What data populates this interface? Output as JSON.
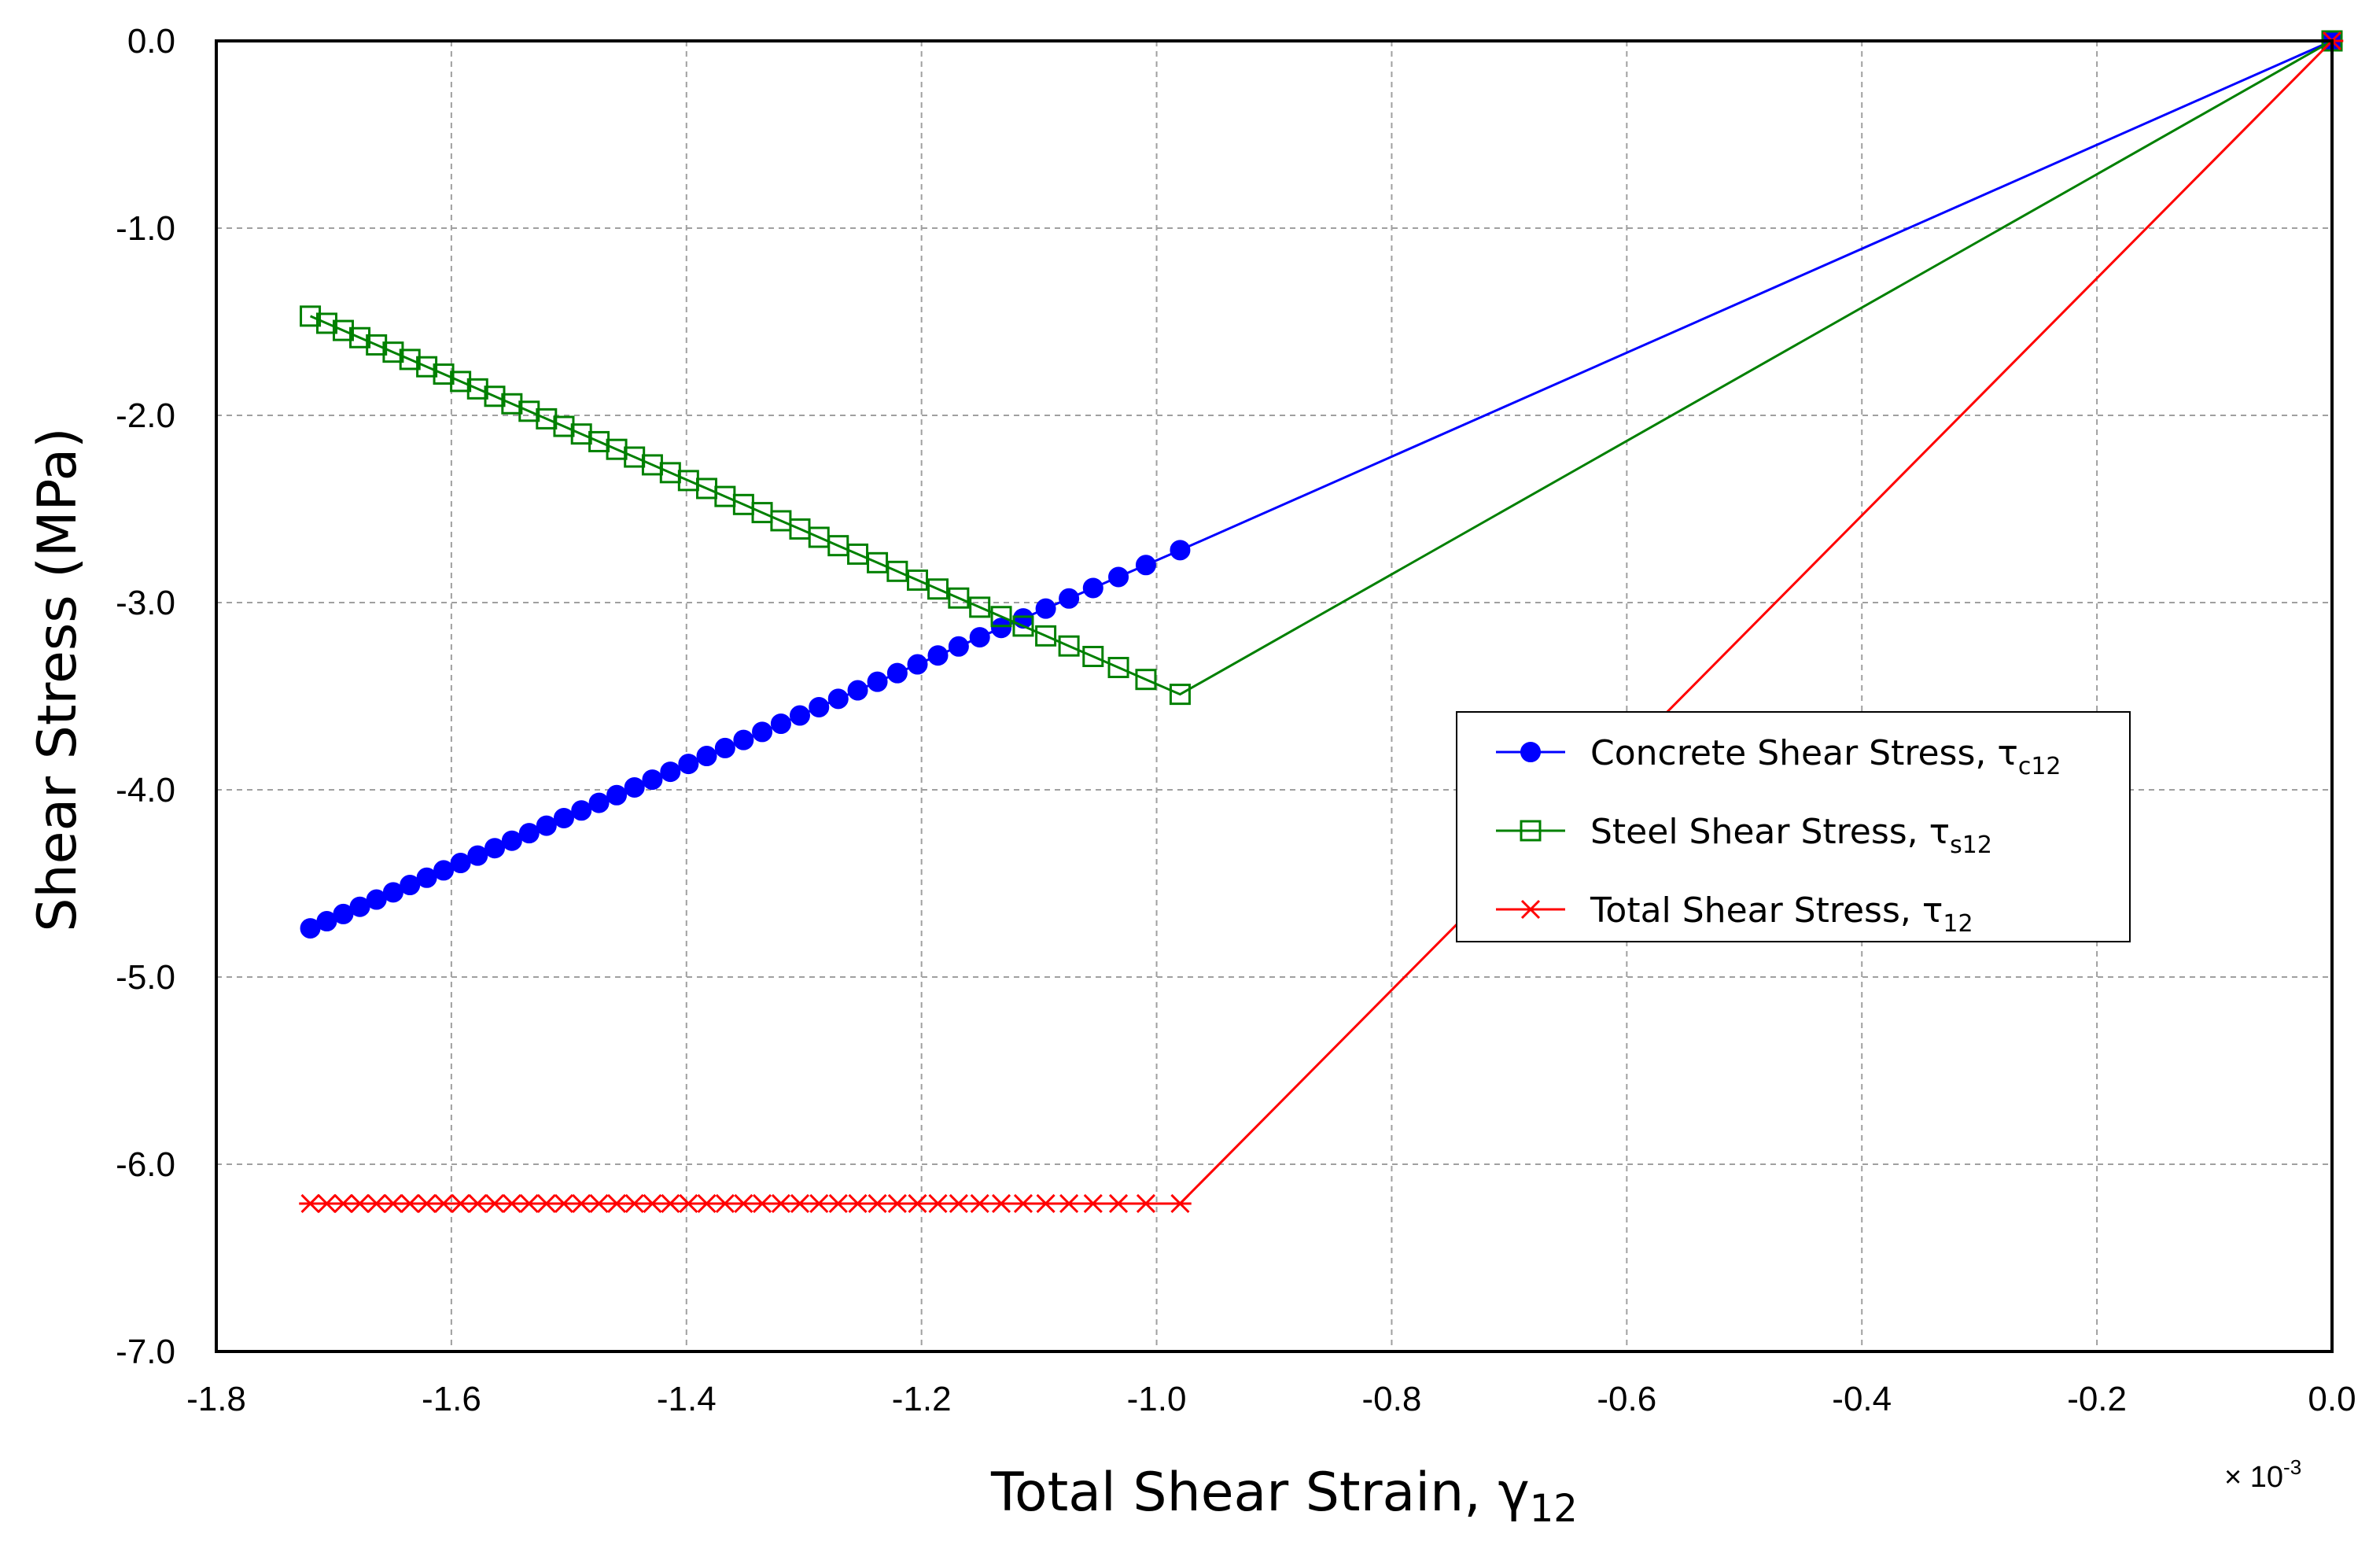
{
  "chart_data": {
    "type": "line",
    "xlabel": "Total Shear Strain, γ",
    "xlabel_sub": "12",
    "ylabel": "Shear Stress (MPa)",
    "x_multiplier_base": "× 10",
    "x_multiplier_exp": "-3",
    "xlim": [
      -1.8,
      0.0
    ],
    "ylim": [
      -7.0,
      0.0
    ],
    "x_ticks": [
      -1.8,
      -1.6,
      -1.4,
      -1.2,
      -1.0,
      -0.8,
      -0.6,
      -0.4,
      -0.2,
      0.0
    ],
    "x_tick_labels": [
      "-1.8",
      "-1.6",
      "-1.4",
      "-1.2",
      "-1.0",
      "-0.8",
      "-0.6",
      "-0.4",
      "-0.2",
      "0.0"
    ],
    "y_ticks": [
      0.0,
      -1.0,
      -2.0,
      -3.0,
      -4.0,
      -5.0,
      -6.0,
      -7.0
    ],
    "y_tick_labels": [
      "0.0",
      "-1.0",
      "-2.0",
      "-3.0",
      "-4.0",
      "-5.0",
      "-6.0",
      "-7.0"
    ],
    "grid": true,
    "legend_position": "center-right",
    "series": [
      {
        "name": "Concrete Shear Stress, τ",
        "name_sub": "c12",
        "color": "#0000ff",
        "marker": "circle-filled",
        "origin": [
          0.0,
          0.0
        ],
        "start": [
          -0.98,
          -2.72
        ],
        "end": [
          -1.72,
          -4.74
        ],
        "points": 46
      },
      {
        "name": "Steel Shear Stress, τ",
        "name_sub": "s12",
        "color": "#008000",
        "marker": "square-open",
        "origin": [
          0.0,
          0.0
        ],
        "start": [
          -0.98,
          -3.49
        ],
        "end": [
          -1.72,
          -1.47
        ],
        "points": 46
      },
      {
        "name": "Total Shear Stress, τ",
        "name_sub": "12",
        "color": "#ff0000",
        "marker": "asterisk",
        "origin": [
          0.0,
          0.0
        ],
        "start": [
          -0.98,
          -6.21
        ],
        "end": [
          -1.72,
          -6.21
        ],
        "points": 46
      }
    ]
  }
}
